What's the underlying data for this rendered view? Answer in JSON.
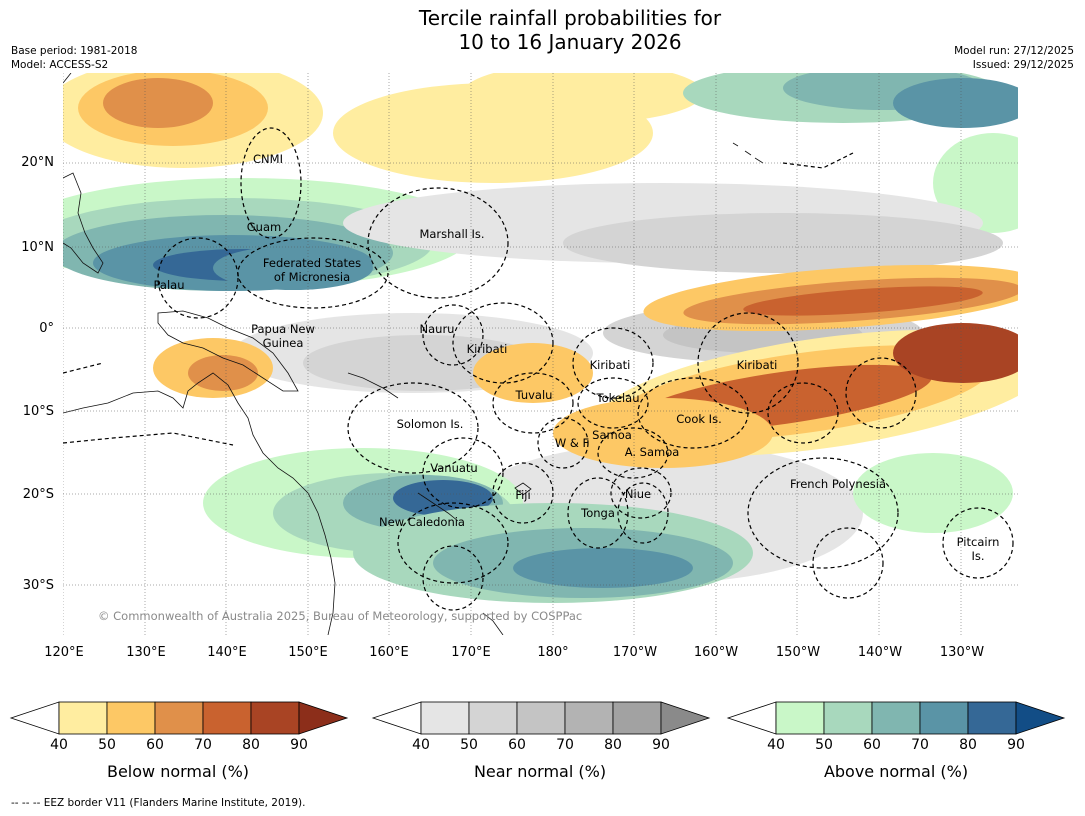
{
  "title_line1": "Tercile rainfall probabilities for",
  "title_line2": "10 to 16 January 2026",
  "meta_left": {
    "base_period": "Base period: 1981-2018",
    "model": "Model: ACCESS-S2"
  },
  "meta_right": {
    "model_run": "Model run: 27/12/2025",
    "issued": "Issued: 29/12/2025"
  },
  "lat_labels": [
    "20°N",
    "10°N",
    "0°",
    "10°S",
    "20°S",
    "30°S"
  ],
  "lon_labels": [
    "120°E",
    "130°E",
    "140°E",
    "150°E",
    "160°E",
    "170°E",
    "180°",
    "170°W",
    "160°W",
    "150°W",
    "140°W",
    "130°W"
  ],
  "places": {
    "cnmi": "CNMI",
    "guam": "Guam",
    "marshall": "Marshall Is.",
    "fsm1": "Federated States",
    "fsm2": "of Micronesia",
    "palau": "Palau",
    "png1": "Papua New",
    "png2": "Guinea",
    "nauru": "Nauru",
    "kiribati_w": "Kiribati",
    "kiribati_c": "Kiribati",
    "kiribati_e": "Kiribati",
    "tuvalu": "Tuvalu",
    "tokelau": "Tokelau",
    "cook": "Cook Is.",
    "solomon": "Solomon Is.",
    "wf": "W & F",
    "samoa": "Samoa",
    "asamoa": "A. Samoa",
    "vanuatu": "Vanuatu",
    "fiji": "Fiji",
    "niue": "Niue",
    "tonga": "Tonga",
    "french_polynesia": "French Polynesia",
    "newcal": "New Caledonia",
    "pitcairn1": "Pitcairn",
    "pitcairn2": "Is."
  },
  "copyright": "© Commonwealth of Australia 2025, Bureau of Meteorology, supported by COSPPac",
  "colorbars": {
    "ticks": [
      "40",
      "50",
      "60",
      "70",
      "80",
      "90"
    ],
    "below": {
      "label": "Below normal (%)",
      "colors": [
        "#ffeda0",
        "#fdc865",
        "#e0904a",
        "#c9622f",
        "#a94424",
        "#8c2e1a"
      ]
    },
    "near": {
      "label": "Near normal (%)",
      "colors": [
        "#e5e5e5",
        "#d4d4d4",
        "#c4c4c4",
        "#b3b3b3",
        "#a2a2a2",
        "#8a8a8a"
      ]
    },
    "above": {
      "label": "Above normal (%)",
      "colors": [
        "#c9f7c8",
        "#a8d8bd",
        "#80b6b0",
        "#5a94a6",
        "#356896",
        "#124d86"
      ]
    }
  },
  "footnote": "--  --  -- EEZ border V11 (Flanders Marine Institute, 2019)."
}
